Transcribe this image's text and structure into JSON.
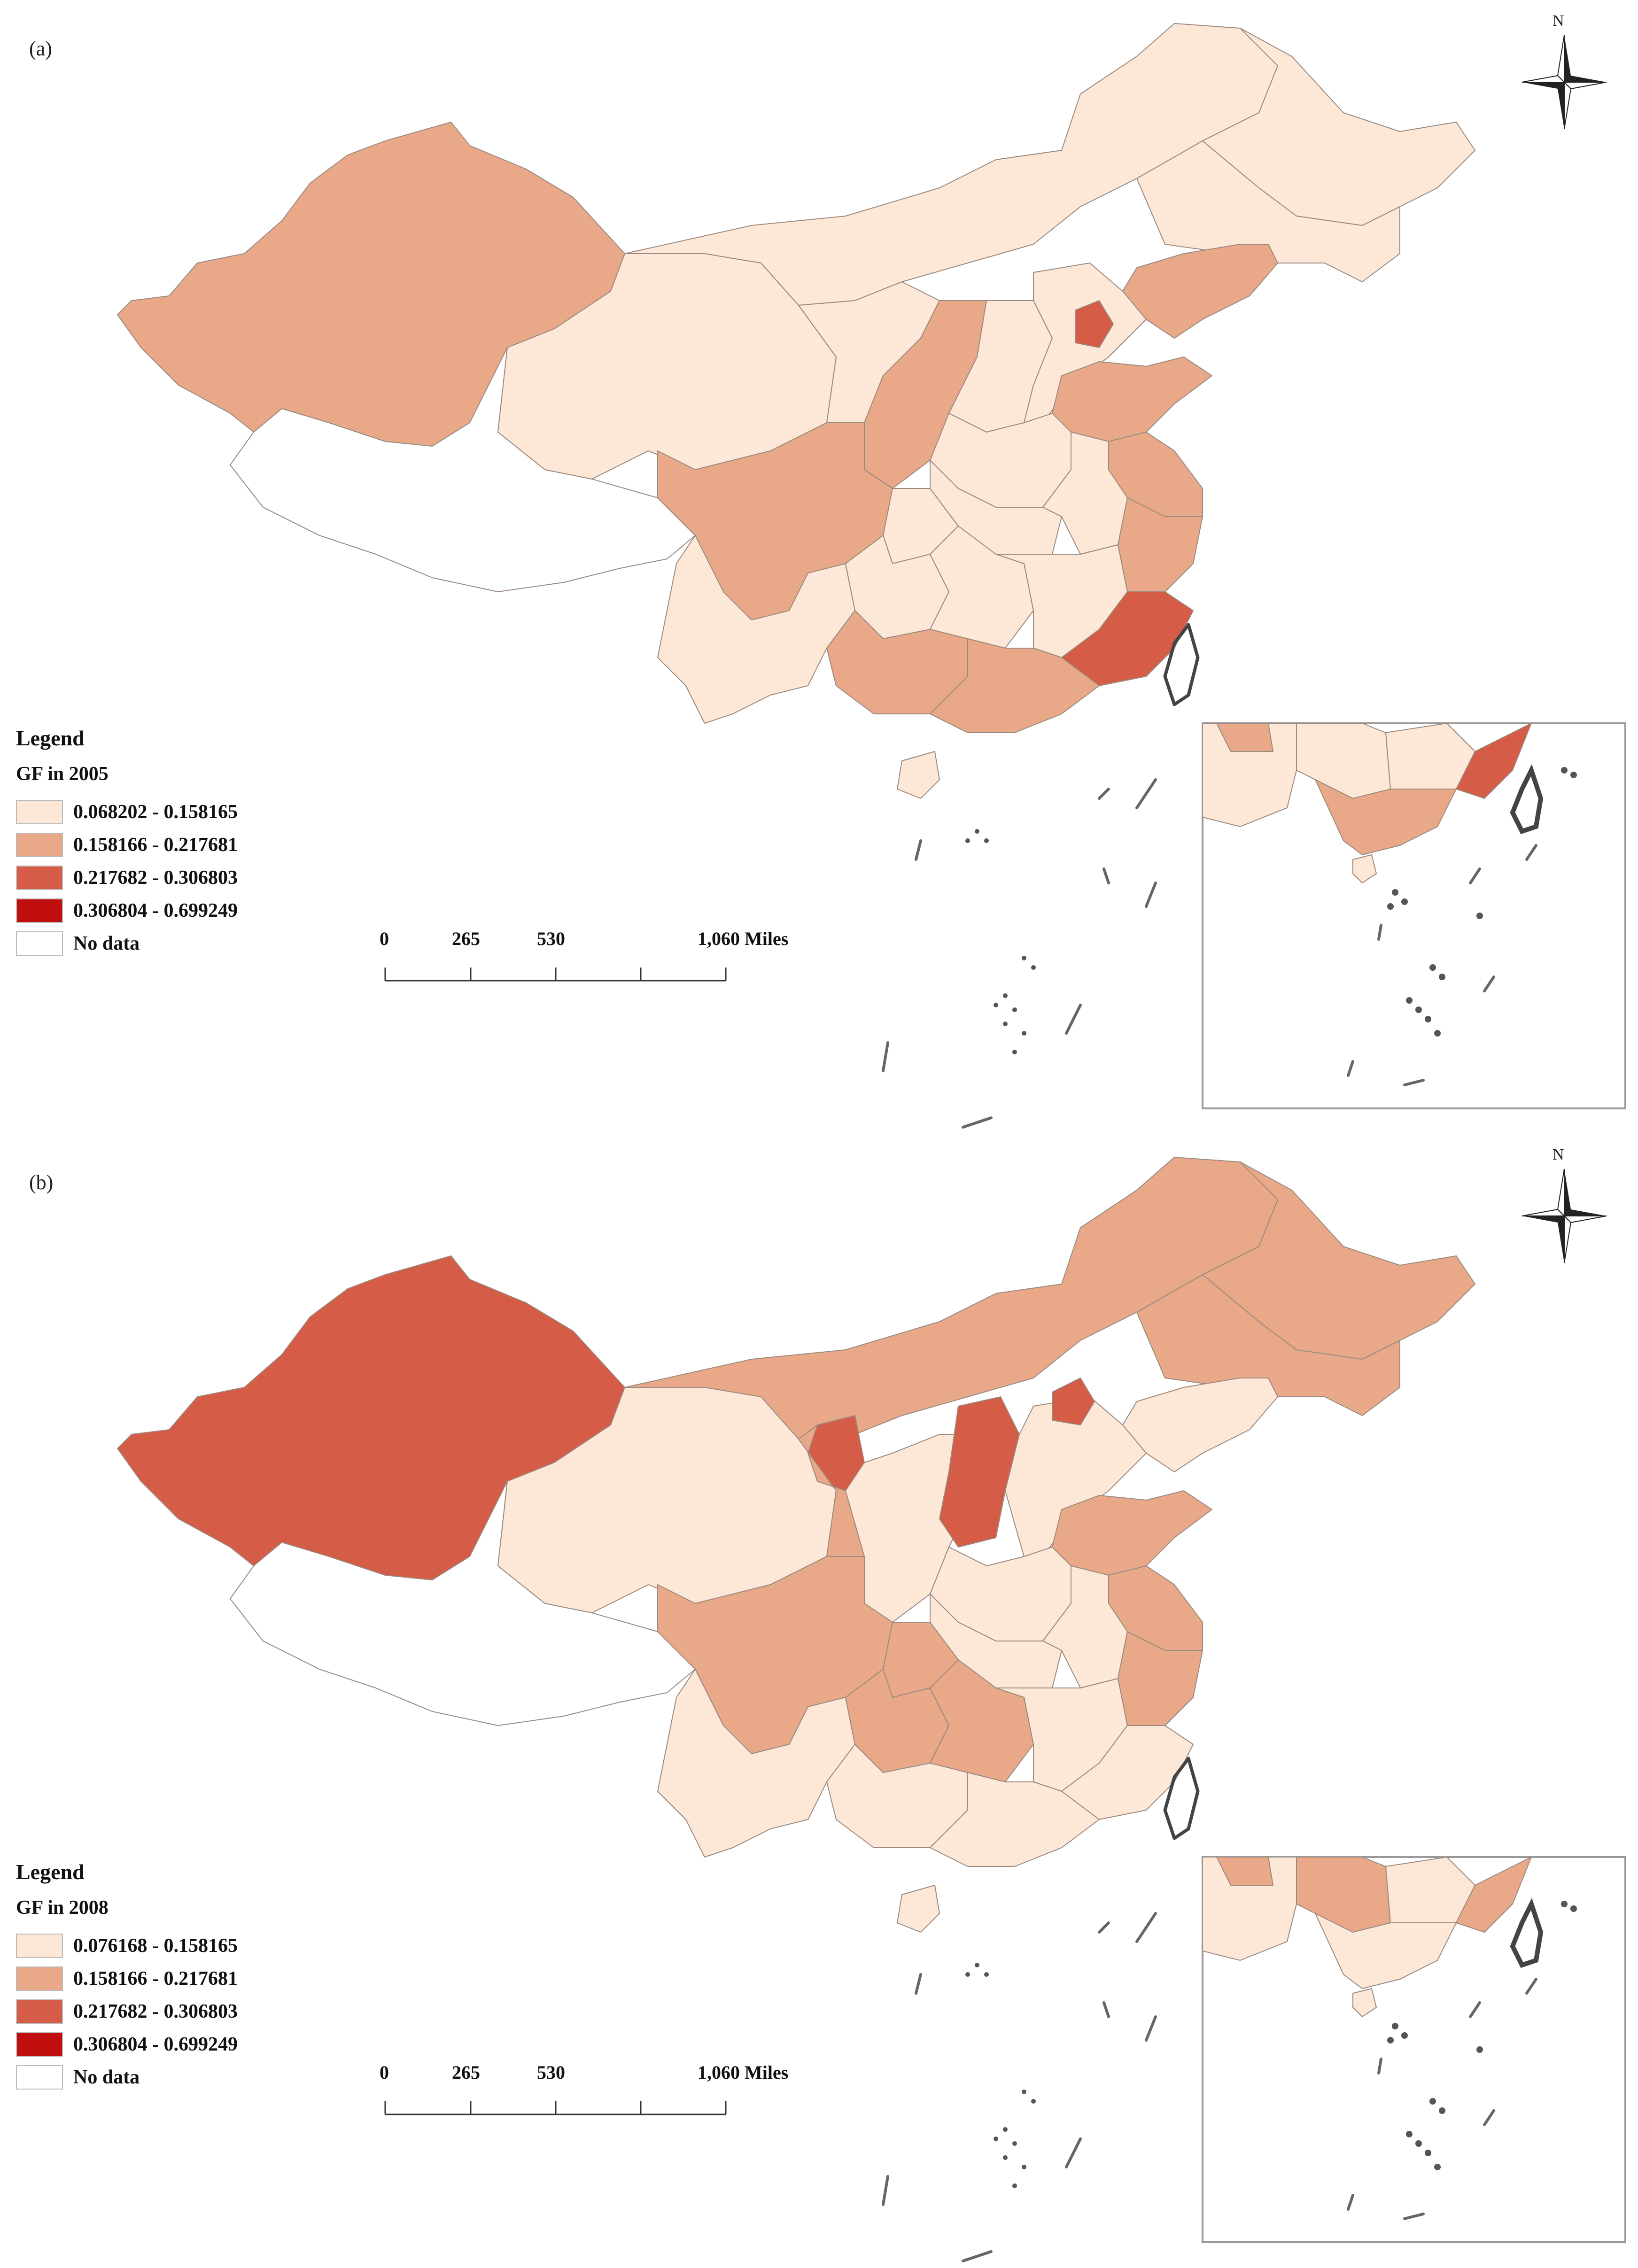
{
  "panels": [
    {
      "panel_label": "(a)",
      "north_label": "N",
      "legend": {
        "title": "Legend",
        "subtitle": "GF in 2005",
        "classes": [
          {
            "label": "0.068202 - 0.158165",
            "color": "#fde8d8"
          },
          {
            "label": "0.158166 - 0.217681",
            "color": "#e9a988"
          },
          {
            "label": "0.217682 - 0.306803",
            "color": "#d55c46"
          },
          {
            "label": "0.306804 - 0.699249",
            "color": "#c00d0d"
          },
          {
            "label": "No data",
            "color": "#ffffff"
          }
        ]
      },
      "scale_bar": {
        "ticks": [
          "0",
          "265",
          "530",
          "1,060 Miles"
        ]
      }
    },
    {
      "panel_label": "(b)",
      "north_label": "N",
      "legend": {
        "title": "Legend",
        "subtitle": "GF in 2008",
        "classes": [
          {
            "label": "0.076168 - 0.158165",
            "color": "#fde8d8"
          },
          {
            "label": "0.158166 - 0.217681",
            "color": "#e9a988"
          },
          {
            "label": "0.217682 - 0.306803",
            "color": "#d55c46"
          },
          {
            "label": "0.306804 - 0.699249",
            "color": "#c00d0d"
          },
          {
            "label": "No data",
            "color": "#ffffff"
          }
        ]
      },
      "scale_bar": {
        "ticks": [
          "0",
          "265",
          "530",
          "1,060 Miles"
        ]
      }
    }
  ]
}
